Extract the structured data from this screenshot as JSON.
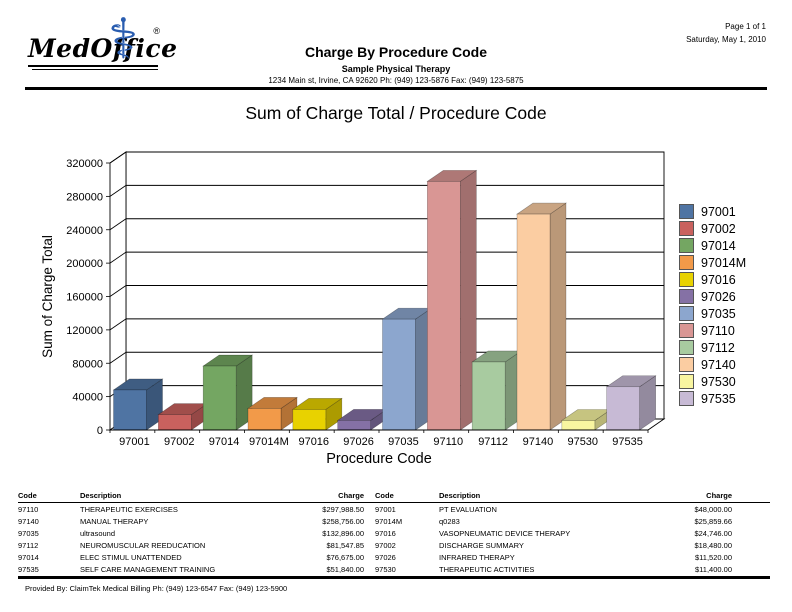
{
  "page_info": {
    "page_number": "Page 1 of 1",
    "date": "Saturday, May 1, 2010"
  },
  "header": {
    "logo_text": "MedOffice",
    "logo_reg": "®",
    "report_title": "Charge By Procedure Code",
    "practice_name": "Sample Physical Therapy",
    "practice_address": "1234 Main st, Irvine, CA 92620 Ph: (949) 123-5876 Fax: (949) 123-5875"
  },
  "chart_data": {
    "type": "bar",
    "title": "Sum of Charge Total / Procedure Code",
    "xlabel": "Procedure Code",
    "ylabel": "Sum of Charge Total",
    "ylim": [
      0,
      320000
    ],
    "ytick_step": 40000,
    "grid": true,
    "legend_position": "right",
    "categories": [
      "97001",
      "97002",
      "97014",
      "97014M",
      "97016",
      "97026",
      "97035",
      "97110",
      "97112",
      "97140",
      "97530",
      "97535"
    ],
    "values": [
      48000,
      18480,
      76675,
      25859.66,
      24746,
      11520,
      132896,
      297988.5,
      81547.85,
      258756,
      11400,
      51840
    ],
    "colors": [
      "#4f74a3",
      "#c9615e",
      "#74a662",
      "#f29a49",
      "#e8d200",
      "#8571a5",
      "#8ca6ce",
      "#d99694",
      "#a8cba0",
      "#fbcda2",
      "#f8f5a0",
      "#c7bad5"
    ]
  },
  "table": {
    "headers": [
      "Code",
      "Description",
      "Charge",
      "Code",
      "Description",
      "Charge"
    ],
    "rows": [
      {
        "code1": "97110",
        "desc1": "THERAPEUTIC EXERCISES",
        "charge1": "$297,988.50",
        "code2": "97001",
        "desc2": "PT EVALUATION",
        "charge2": "$48,000.00"
      },
      {
        "code1": "97140",
        "desc1": "MANUAL THERAPY",
        "charge1": "$258,756.00",
        "code2": "97014M",
        "desc2": "q0283",
        "charge2": "$25,859.66"
      },
      {
        "code1": "97035",
        "desc1": "ultrasound",
        "charge1": "$132,896.00",
        "code2": "97016",
        "desc2": "VASOPNEUMATIC DEVICE THERAPY",
        "charge2": "$24,746.00"
      },
      {
        "code1": "97112",
        "desc1": "NEUROMUSCULAR REEDUCATION",
        "charge1": "$81,547.85",
        "code2": "97002",
        "desc2": "DISCHARGE SUMMARY",
        "charge2": "$18,480.00"
      },
      {
        "code1": "97014",
        "desc1": "ELEC STIMUL UNATTENDED",
        "charge1": "$76,675.00",
        "code2": "97026",
        "desc2": "INFRARED THERAPY",
        "charge2": "$11,520.00"
      },
      {
        "code1": "97535",
        "desc1": "SELF CARE MANAGEMENT TRAINING",
        "charge1": "$51,840.00",
        "code2": "97530",
        "desc2": "THERAPEUTIC ACTIVITIES",
        "charge2": "$11,400.00"
      }
    ]
  },
  "footer": {
    "provided_by": "Provided By: ClaimTek Medical Billing  Ph: (949) 123-6547 Fax: (949) 123-5900"
  }
}
